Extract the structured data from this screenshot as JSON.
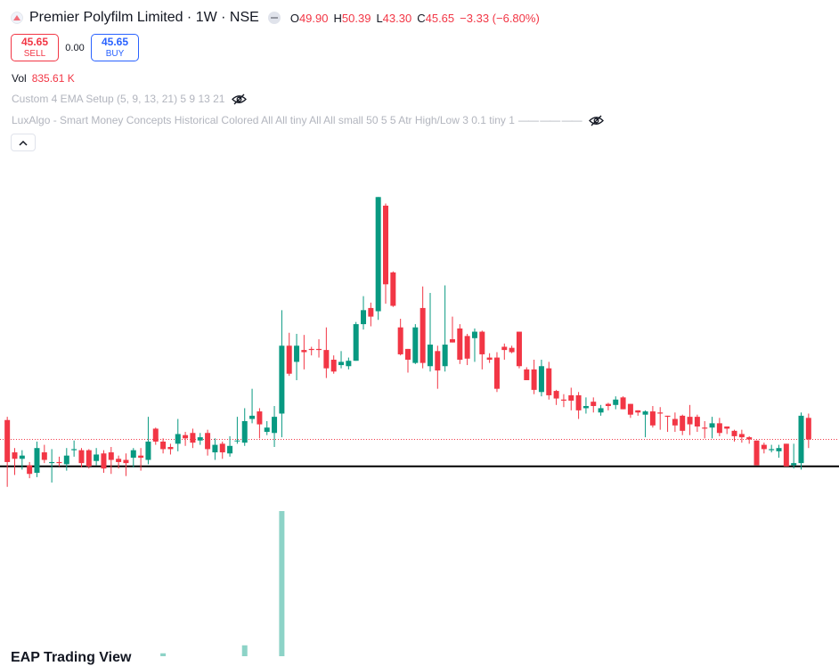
{
  "header": {
    "title": "Premier Polyfilm Limited · 1W · NSE",
    "ohlc": [
      {
        "label": "O",
        "value": "49.90"
      },
      {
        "label": "H",
        "value": "50.39"
      },
      {
        "label": "L",
        "value": "43.30"
      },
      {
        "label": "C",
        "value": "45.65"
      }
    ],
    "change": "−3.33 (−6.80%)"
  },
  "trade": {
    "sell_price": "45.65",
    "sell_label": "SELL",
    "spread": "0.00",
    "buy_price": "45.65",
    "buy_label": "BUY"
  },
  "volume": {
    "label": "Vol",
    "value": "835.61 K"
  },
  "indicators": [
    {
      "text": "Custom 4 EMA Setup (5, 9, 13, 21) 5 9 13 21"
    },
    {
      "text": "LuxAlgo - Smart Money Concepts Historical Colored All All tiny All All small 50 5 5 Atr High/Low 3 0.1 tiny 1",
      "dashes": "—— —— ——"
    }
  ],
  "bottom_text": "EAP Trading View",
  "colors": {
    "up": "#089981",
    "down": "#f23645",
    "volume": "#8dd3c7",
    "line": "#000000",
    "price_line": "#f23645"
  },
  "chart_data": {
    "type": "candlestick",
    "price_range": [
      40.2,
      74.5
    ],
    "horizontal_line": 46.5,
    "price_line": 49.0,
    "candles": [
      [
        50.8,
        46.9,
        51.1,
        44.6
      ],
      [
        47.8,
        47.2,
        48.2,
        45.7
      ],
      [
        47.2,
        47.5,
        48.0,
        46.2
      ],
      [
        46.6,
        45.8,
        46.9,
        45.4
      ],
      [
        45.9,
        48.2,
        48.8,
        45.5
      ],
      [
        47.8,
        47.1,
        48.5,
        46.8
      ],
      [
        46.8,
        46.9,
        48.1,
        45.0
      ],
      [
        46.9,
        46.8,
        47.4,
        46.5
      ],
      [
        46.7,
        47.5,
        48.2,
        46.1
      ],
      [
        48.0,
        48.1,
        48.9,
        47.4
      ],
      [
        48.0,
        46.8,
        48.2,
        46.4
      ],
      [
        48.0,
        46.5,
        48.1,
        46.3
      ],
      [
        47.0,
        47.6,
        48.2,
        46.6
      ],
      [
        47.7,
        46.3,
        48.0,
        45.9
      ],
      [
        47.8,
        47.1,
        48.3,
        45.8
      ],
      [
        47.2,
        46.9,
        47.5,
        46.3
      ],
      [
        47.1,
        46.8,
        47.7,
        45.6
      ],
      [
        47.3,
        48.0,
        48.2,
        46.4
      ],
      [
        47.5,
        47.3,
        48.2,
        46.1
      ],
      [
        47.1,
        48.8,
        51.1,
        46.7
      ],
      [
        50.0,
        48.8,
        50.1,
        48.5
      ],
      [
        48.8,
        48.1,
        49.1,
        47.7
      ],
      [
        48.3,
        48.1,
        48.6,
        47.6
      ],
      [
        48.6,
        49.5,
        50.9,
        47.9
      ],
      [
        49.4,
        49.1,
        49.7,
        48.4
      ],
      [
        49.6,
        48.7,
        50.0,
        48.2
      ],
      [
        48.9,
        49.2,
        49.6,
        48.5
      ],
      [
        49.6,
        48.1,
        49.9,
        47.5
      ],
      [
        47.8,
        48.5,
        49.1,
        47.1
      ],
      [
        48.6,
        47.8,
        48.8,
        47.2
      ],
      [
        47.7,
        48.4,
        49.3,
        47.4
      ],
      [
        48.9,
        48.9,
        51.1,
        48.6
      ],
      [
        48.7,
        50.7,
        51.9,
        48.4
      ],
      [
        50.9,
        51.2,
        53.7,
        50.5
      ],
      [
        51.6,
        50.4,
        51.9,
        49.1
      ],
      [
        49.7,
        50.1,
        50.7,
        49.4
      ],
      [
        49.6,
        51.1,
        52.1,
        48.3
      ],
      [
        51.4,
        57.7,
        61.0,
        49.2
      ],
      [
        57.7,
        55.1,
        58.9,
        54.9
      ],
      [
        56.2,
        57.7,
        58.8,
        54.5
      ],
      [
        57.3,
        57.1,
        58.7,
        55.5
      ],
      [
        57.4,
        57.3,
        57.6,
        56.8
      ],
      [
        57.4,
        57.3,
        58.3,
        56.6
      ],
      [
        57.3,
        55.6,
        59.4,
        54.7
      ],
      [
        56.4,
        55.3,
        56.8,
        55.1
      ],
      [
        55.9,
        56.2,
        57.2,
        55.6
      ],
      [
        55.8,
        56.3,
        56.6,
        55.5
      ],
      [
        56.3,
        59.7,
        59.9,
        56.3
      ],
      [
        59.7,
        61.0,
        62.3,
        59.2
      ],
      [
        61.2,
        60.4,
        61.7,
        59.5
      ],
      [
        60.9,
        71.5,
        71.5,
        60.1
      ],
      [
        70.7,
        63.4,
        70.9,
        61.6
      ],
      [
        64.5,
        61.4,
        64.6,
        61.3
      ],
      [
        59.4,
        56.9,
        60.2,
        56.8
      ],
      [
        57.4,
        56.4,
        57.4,
        55.2
      ],
      [
        56.1,
        59.4,
        59.7,
        56.0
      ],
      [
        61.2,
        56.1,
        63.2,
        55.6
      ],
      [
        55.8,
        57.8,
        62.6,
        55.3
      ],
      [
        57.2,
        55.4,
        57.7,
        53.7
      ],
      [
        55.8,
        57.8,
        63.3,
        55.3
      ],
      [
        58.3,
        58.0,
        60.4,
        58.0
      ],
      [
        59.3,
        56.4,
        59.7,
        56.0
      ],
      [
        58.6,
        56.5,
        58.8,
        55.9
      ],
      [
        58.4,
        59.0,
        59.3,
        56.2
      ],
      [
        59.0,
        56.9,
        59.1,
        55.5
      ],
      [
        56.6,
        56.4,
        57.0,
        56.1
      ],
      [
        56.6,
        53.7,
        57.1,
        53.4
      ],
      [
        57.6,
        57.3,
        57.9,
        56.4
      ],
      [
        57.5,
        57.1,
        57.7,
        57.0
      ],
      [
        59.0,
        55.8,
        59.0,
        55.6
      ],
      [
        55.5,
        54.5,
        55.7,
        54.5
      ],
      [
        55.5,
        53.6,
        56.4,
        53.2
      ],
      [
        53.4,
        55.8,
        56.4,
        53.0
      ],
      [
        55.6,
        53.1,
        56.2,
        52.7
      ],
      [
        53.5,
        52.8,
        53.6,
        52.2
      ],
      [
        52.7,
        52.6,
        53.2,
        52.0
      ],
      [
        53.1,
        52.6,
        53.8,
        51.7
      ],
      [
        53.1,
        51.7,
        53.4,
        50.9
      ],
      [
        51.9,
        52.1,
        52.9,
        51.4
      ],
      [
        52.5,
        52.1,
        52.9,
        51.5
      ],
      [
        51.5,
        51.9,
        52.2,
        51.2
      ],
      [
        52.3,
        52.1,
        52.4,
        51.7
      ],
      [
        52.2,
        52.7,
        53.0,
        51.8
      ],
      [
        52.9,
        51.8,
        53.0,
        51.8
      ],
      [
        52.3,
        51.3,
        52.3,
        51.0
      ],
      [
        51.7,
        51.5,
        51.7,
        51.2
      ],
      [
        51.3,
        51.6,
        51.7,
        49.2
      ],
      [
        51.6,
        50.3,
        52.1,
        50.1
      ],
      [
        51.5,
        51.4,
        52.0,
        49.9
      ],
      [
        51.2,
        51.1,
        51.2,
        49.7
      ],
      [
        50.9,
        50.3,
        51.5,
        49.7
      ],
      [
        51.2,
        49.8,
        51.3,
        49.4
      ],
      [
        51.1,
        50.4,
        52.2,
        49.4
      ],
      [
        51.1,
        50.2,
        51.3,
        49.7
      ],
      [
        50.1,
        50.0,
        50.7,
        49.1
      ],
      [
        50.1,
        50.5,
        51.1,
        49.1
      ],
      [
        50.5,
        49.6,
        51.0,
        49.3
      ],
      [
        50.2,
        50.0,
        50.2,
        49.5
      ],
      [
        49.8,
        49.3,
        49.9,
        48.8
      ],
      [
        49.5,
        49.2,
        49.9,
        48.7
      ],
      [
        49.2,
        49.0,
        49.3,
        48.6
      ],
      [
        48.9,
        46.6,
        48.9,
        46.6
      ],
      [
        48.5,
        48.1,
        48.7,
        47.7
      ],
      [
        48.0,
        48.1,
        48.5,
        47.8
      ],
      [
        47.9,
        48.2,
        48.5,
        47.3
      ],
      [
        48.6,
        46.5,
        48.6,
        46.5
      ],
      [
        46.6,
        46.8,
        48.6,
        46.3
      ],
      [
        46.8,
        51.2,
        51.5,
        46.2
      ],
      [
        51.0,
        49.0,
        51.4,
        48.2
      ]
    ],
    "volume_visible": [
      {
        "index": 32,
        "relative": 0.075
      },
      {
        "index": 37,
        "relative": 1.0
      },
      {
        "index": 21,
        "relative": 0.02
      }
    ]
  }
}
